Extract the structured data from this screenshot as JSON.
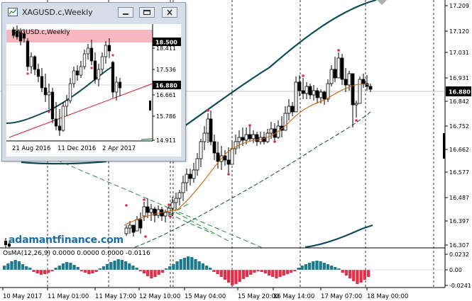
{
  "main": {
    "price_ticks": [
      "17.209",
      "17.120",
      "17.031",
      "16.931",
      "16.842",
      "16.752",
      "16.662",
      "16.577",
      "16.487",
      "16.397",
      "16.307"
    ],
    "current_price": "16.880",
    "time_ticks": [
      "10 May 2017",
      "11 May 01:00",
      "11 May 17:00",
      "12 May 10:00",
      "15 May 04:00",
      "15 May 20:00",
      "16 May 14:00",
      "17 May 07:00",
      "18 May 00:00"
    ],
    "watermark": "adamantfinance.com"
  },
  "osma": {
    "label": "OsMA(12,26,9) 0.0000 0.0000 0.0000 -0.0116",
    "ticks": [
      "0.0232",
      "0.00",
      "-0.0241"
    ]
  },
  "inset": {
    "title": "XAGUSD.c,Weekly",
    "chart_label": "XAGUSD.c,Weekly",
    "price_ticks": [
      "18.411",
      "17.536",
      "16.661",
      "15.786",
      "14.911"
    ],
    "resistance_price": "18.500",
    "current_price": "16.880",
    "time_ticks": [
      "21 Aug 2016",
      "11 Dec 2016",
      "2 Apr 2017"
    ]
  },
  "colors": {
    "bull_candle": "#000000",
    "bear_candle": "#000000",
    "ma_fast": "#c8600a",
    "band": "#0e4a5a",
    "trend_dashed": "#2d8a3c",
    "fractal": "#e0294a",
    "osma_pos": "#1b7a8c",
    "osma_neg": "#e0304a",
    "resistance_zone": "#f7b7c0",
    "inset_trendline": "#d21e2e"
  },
  "icons": {
    "minimize": "minimize-icon",
    "restore": "restore-icon",
    "close": "close-icon",
    "app": "chart-window-icon"
  }
}
